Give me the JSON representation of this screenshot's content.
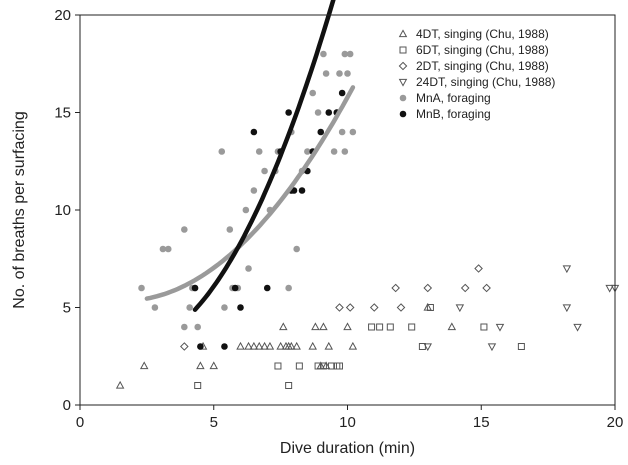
{
  "chart_data": {
    "type": "scatter",
    "xlabel": "Dive duration (min)",
    "ylabel": "No. of breaths per surfacing",
    "xlim": [
      0,
      20
    ],
    "ylim": [
      0,
      20
    ],
    "xticks": [
      0,
      5,
      10,
      15,
      20
    ],
    "yticks": [
      0,
      5,
      10,
      15,
      20
    ],
    "grid": false,
    "legend_position": "top-right",
    "series": [
      {
        "name": "4DT, singing (Chu, 1988)",
        "marker": "triangle-up",
        "color": "#555555",
        "fill": "none",
        "points": [
          [
            1.5,
            1
          ],
          [
            2.4,
            2
          ],
          [
            4.5,
            2
          ],
          [
            4.6,
            3
          ],
          [
            5.0,
            2
          ],
          [
            6.0,
            3
          ],
          [
            6.3,
            3
          ],
          [
            6.5,
            3
          ],
          [
            6.7,
            3
          ],
          [
            6.9,
            3
          ],
          [
            7.1,
            3
          ],
          [
            7.5,
            3
          ],
          [
            7.7,
            3
          ],
          [
            7.9,
            3
          ],
          [
            8.1,
            3
          ],
          [
            7.6,
            4
          ],
          [
            7.8,
            3
          ],
          [
            8.7,
            3
          ],
          [
            8.8,
            4
          ],
          [
            9.1,
            4
          ],
          [
            9.3,
            3
          ],
          [
            9.0,
            2
          ],
          [
            9.2,
            2
          ],
          [
            10.2,
            3
          ],
          [
            10.0,
            4
          ],
          [
            13.0,
            5
          ],
          [
            13.9,
            4
          ]
        ]
      },
      {
        "name": "6DT, singing (Chu, 1988)",
        "marker": "square",
        "color": "#555555",
        "fill": "none",
        "points": [
          [
            4.4,
            1
          ],
          [
            7.4,
            2
          ],
          [
            7.8,
            1
          ],
          [
            8.2,
            2
          ],
          [
            8.9,
            2
          ],
          [
            9.1,
            2
          ],
          [
            9.4,
            2
          ],
          [
            9.6,
            2
          ],
          [
            9.7,
            2
          ],
          [
            10.9,
            4
          ],
          [
            11.2,
            4
          ],
          [
            11.6,
            4
          ],
          [
            12.4,
            4
          ],
          [
            12.8,
            3
          ],
          [
            13.1,
            5
          ],
          [
            15.1,
            4
          ],
          [
            16.5,
            3
          ]
        ]
      },
      {
        "name": "2DT, singing (Chu, 1988)",
        "marker": "diamond",
        "color": "#555555",
        "fill": "none",
        "points": [
          [
            3.9,
            3
          ],
          [
            9.7,
            5
          ],
          [
            10.1,
            5
          ],
          [
            11.0,
            5
          ],
          [
            11.8,
            6
          ],
          [
            12.0,
            5
          ],
          [
            13.0,
            6
          ],
          [
            14.4,
            6
          ],
          [
            14.9,
            7
          ],
          [
            15.2,
            6
          ]
        ]
      },
      {
        "name": "24DT, singing (Chu, 1988)",
        "marker": "triangle-down",
        "color": "#555555",
        "fill": "none",
        "points": [
          [
            13.0,
            3
          ],
          [
            14.2,
            5
          ],
          [
            15.4,
            3
          ],
          [
            15.7,
            4
          ],
          [
            18.2,
            7
          ],
          [
            18.2,
            5
          ],
          [
            18.6,
            4
          ],
          [
            19.8,
            6
          ],
          [
            20.0,
            6
          ]
        ]
      },
      {
        "name": "MnA, foraging",
        "marker": "circle",
        "color": "#9a9a9a",
        "fill": "#9a9a9a",
        "points": [
          [
            2.3,
            6
          ],
          [
            2.8,
            5
          ],
          [
            3.1,
            8
          ],
          [
            3.3,
            8
          ],
          [
            3.9,
            4
          ],
          [
            3.9,
            9
          ],
          [
            4.1,
            5
          ],
          [
            4.2,
            6
          ],
          [
            4.3,
            6
          ],
          [
            4.4,
            4
          ],
          [
            5.3,
            13
          ],
          [
            5.4,
            5
          ],
          [
            5.6,
            9
          ],
          [
            5.7,
            6
          ],
          [
            5.9,
            6
          ],
          [
            6.2,
            10
          ],
          [
            6.3,
            7
          ],
          [
            6.5,
            11
          ],
          [
            6.7,
            13
          ],
          [
            6.9,
            12
          ],
          [
            7.1,
            10
          ],
          [
            7.3,
            12
          ],
          [
            7.4,
            13
          ],
          [
            7.8,
            6
          ],
          [
            7.9,
            14
          ],
          [
            7.9,
            11
          ],
          [
            8.1,
            8
          ],
          [
            8.3,
            12
          ],
          [
            8.5,
            13
          ],
          [
            8.7,
            16
          ],
          [
            8.9,
            15
          ],
          [
            9.1,
            18
          ],
          [
            9.2,
            17
          ],
          [
            9.5,
            13
          ],
          [
            9.6,
            15
          ],
          [
            9.7,
            17
          ],
          [
            9.8,
            14
          ],
          [
            9.9,
            18
          ],
          [
            9.9,
            13
          ],
          [
            10.0,
            17
          ],
          [
            10.1,
            18
          ],
          [
            10.2,
            14
          ]
        ]
      },
      {
        "name": "MnB, foraging",
        "marker": "circle",
        "color": "#111111",
        "fill": "#111111",
        "points": [
          [
            4.3,
            6
          ],
          [
            4.5,
            3
          ],
          [
            5.4,
            3
          ],
          [
            5.8,
            6
          ],
          [
            6.0,
            5
          ],
          [
            6.5,
            14
          ],
          [
            7.0,
            6
          ],
          [
            7.5,
            13
          ],
          [
            7.8,
            15
          ],
          [
            7.9,
            11
          ],
          [
            8.0,
            11
          ],
          [
            8.3,
            11
          ],
          [
            8.5,
            12
          ],
          [
            8.7,
            13
          ],
          [
            9.0,
            14
          ],
          [
            9.3,
            15
          ],
          [
            9.6,
            15
          ],
          [
            9.8,
            16
          ]
        ]
      }
    ],
    "fit_curves": [
      {
        "series": "MnA, foraging",
        "color": "#9a9a9a",
        "x_range": [
          2.5,
          10.2
        ],
        "coeffs": [
          5.74,
          -0.486,
          0.149
        ]
      },
      {
        "series": "MnB, foraging",
        "color": "#111111",
        "x_range": [
          4.3,
          10.1
        ],
        "coeffs": [
          4.09,
          -1.126,
          0.305
        ]
      }
    ]
  }
}
